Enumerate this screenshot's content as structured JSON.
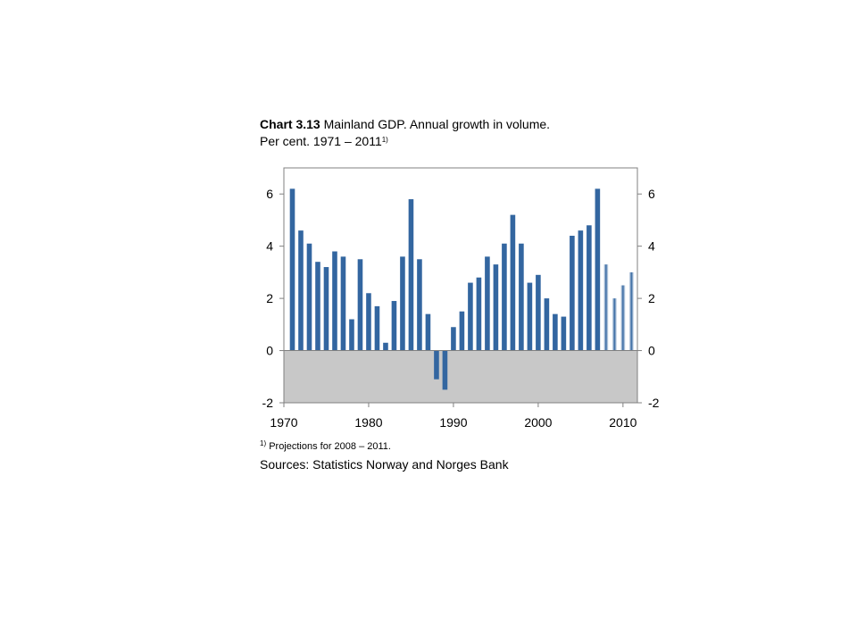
{
  "title": {
    "chart_number": "Chart 3.13",
    "text_line1": "Mainland GDP. Annual growth in volume.",
    "text_line2": "Per cent. 1971 – 2011",
    "note_marker": "1)"
  },
  "footnote": {
    "marker": "1)",
    "text": "Projections for 2008 – 2011."
  },
  "sources": "Sources: Statistics Norway and Norges Bank",
  "colors": {
    "bar": "#3366a0",
    "negative_region": "#c8c8c8",
    "projection_gradient_edge": "#ffffff"
  },
  "chart_data": {
    "type": "bar",
    "title": "Mainland GDP. Annual growth in volume. Per cent. 1971 – 2011",
    "xlabel": "",
    "ylabel": "",
    "ylim": [
      -2,
      7
    ],
    "y_ticks": [
      -2,
      0,
      2,
      4,
      6
    ],
    "x_ticks": [
      1970,
      1980,
      1990,
      2000,
      2010
    ],
    "xlim": [
      1970,
      2011.7
    ],
    "dual_y_axis": true,
    "projection_from": 2008,
    "x": [
      1971,
      1972,
      1973,
      1974,
      1975,
      1976,
      1977,
      1978,
      1979,
      1980,
      1981,
      1982,
      1983,
      1984,
      1985,
      1986,
      1987,
      1988,
      1989,
      1990,
      1991,
      1992,
      1993,
      1994,
      1995,
      1996,
      1997,
      1998,
      1999,
      2000,
      2001,
      2002,
      2003,
      2004,
      2005,
      2006,
      2007,
      2008,
      2009,
      2010,
      2011
    ],
    "values": [
      6.2,
      4.6,
      4.1,
      3.4,
      3.2,
      3.8,
      3.6,
      1.2,
      3.5,
      2.2,
      1.7,
      0.3,
      1.9,
      3.6,
      5.8,
      3.5,
      1.4,
      -1.1,
      -1.5,
      0.9,
      1.5,
      2.6,
      2.8,
      3.6,
      3.3,
      4.1,
      5.2,
      4.1,
      2.6,
      2.9,
      2.0,
      1.4,
      1.3,
      4.4,
      4.6,
      4.8,
      6.2,
      3.3,
      2.0,
      2.5,
      3.0
    ]
  }
}
